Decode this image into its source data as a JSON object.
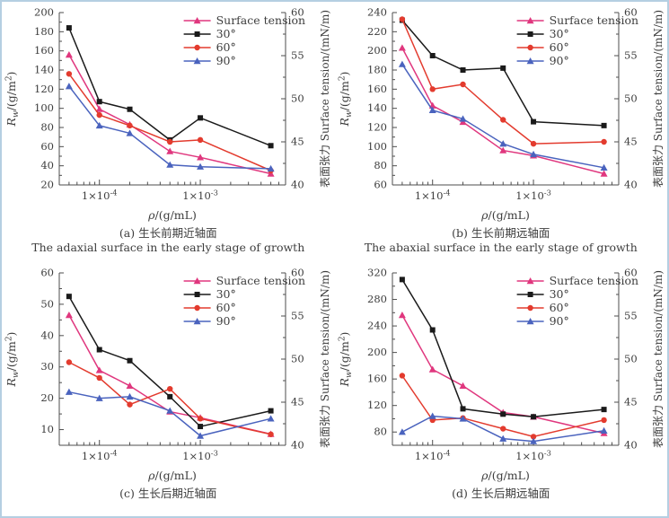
{
  "page": {
    "background": "#ffffff",
    "border_color": "#b5cfe2"
  },
  "colors": {
    "surface_tension": "#e0377e",
    "deg30": "#1a1a1a",
    "deg60": "#e33b2e",
    "deg90": "#4a63be",
    "axis": "#4d4d4d",
    "text": "#3d3d3d"
  },
  "legend": {
    "items": [
      {
        "label": "Surface tension",
        "color_key": "surface_tension",
        "marker": "triangle"
      },
      {
        "label": "30°",
        "color_key": "deg30",
        "marker": "square"
      },
      {
        "label": "60°",
        "color_key": "deg60",
        "marker": "circle"
      },
      {
        "label": "90°",
        "color_key": "deg90",
        "marker": "triangle"
      }
    ]
  },
  "axis_text": {
    "xlabel_parts": [
      {
        "t": "ρ",
        "i": true
      },
      {
        "t": "/(g/mL)"
      }
    ],
    "ylabel_left_parts": [
      {
        "t": "R",
        "i": true
      },
      {
        "t": "w",
        "sub": true,
        "i": true
      },
      {
        "t": "/(g/m"
      },
      {
        "t": "2",
        "sup": true
      },
      {
        "t": ")"
      }
    ],
    "ylabel_right": "表面张力 Surface tension/(mN/m)",
    "x_major_tick_label_parts": [
      [
        {
          "t": "1×10"
        },
        {
          "t": "-4",
          "sup": true
        }
      ],
      [
        {
          "t": "1×10"
        },
        {
          "t": "-3",
          "sup": true
        }
      ]
    ]
  },
  "chart_data": [
    {
      "id": "a",
      "type": "line",
      "caption_zh": "(a) 生长前期近轴面",
      "caption_en": "The adaxial surface in the early stage of growth",
      "x_scale": "log",
      "x_range": [
        4e-05,
        0.007
      ],
      "x_values": [
        5e-05,
        0.0001,
        0.0002,
        0.0005,
        0.001,
        0.005
      ],
      "x_major_ticks": [
        0.0001,
        0.001
      ],
      "y_left": {
        "min": 20,
        "max": 200,
        "tick_start": 20,
        "tick_step": 20,
        "unit": "g/m²"
      },
      "y_right": {
        "min": 40,
        "max": 60,
        "tick_start": 40,
        "tick_step": 5,
        "unit": "mN/m"
      },
      "series": [
        {
          "name": "Surface tension",
          "axis": "right",
          "marker": "triangle",
          "color_key": "surface_tension",
          "values": [
            55.1,
            48.8,
            47.0,
            43.9,
            43.2,
            41.3
          ]
        },
        {
          "name": "30°",
          "axis": "left",
          "marker": "square",
          "color_key": "deg30",
          "values": [
            184,
            107,
            99,
            67,
            90,
            61
          ]
        },
        {
          "name": "60°",
          "axis": "left",
          "marker": "circle",
          "color_key": "deg60",
          "values": [
            136,
            93,
            82,
            65,
            67,
            35
          ]
        },
        {
          "name": "90°",
          "axis": "left",
          "marker": "triangle",
          "color_key": "deg90",
          "values": [
            123,
            82,
            74,
            41,
            39,
            37
          ]
        }
      ]
    },
    {
      "id": "b",
      "type": "line",
      "caption_zh": "(b) 生长前期远轴面",
      "caption_en": "The abaxial surface in the early stage of growth",
      "x_scale": "log",
      "x_range": [
        4e-05,
        0.007
      ],
      "x_values": [
        5e-05,
        0.0001,
        0.0002,
        0.0005,
        0.001,
        0.005
      ],
      "x_major_ticks": [
        0.0001,
        0.001
      ],
      "y_left": {
        "min": 60,
        "max": 240,
        "tick_start": 60,
        "tick_step": 20,
        "unit": "g/m²"
      },
      "y_right": {
        "min": 40,
        "max": 60,
        "tick_start": 40,
        "tick_step": 5,
        "unit": "mN/m"
      },
      "series": [
        {
          "name": "Surface tension",
          "axis": "right",
          "marker": "triangle",
          "color_key": "surface_tension",
          "values": [
            55.9,
            49.2,
            47.3,
            44.0,
            43.4,
            41.3
          ]
        },
        {
          "name": "30°",
          "axis": "left",
          "marker": "square",
          "color_key": "deg30",
          "values": [
            232,
            195,
            180,
            182,
            126,
            122
          ]
        },
        {
          "name": "60°",
          "axis": "left",
          "marker": "circle",
          "color_key": "deg60",
          "values": [
            233,
            160,
            165,
            128,
            103,
            105
          ]
        },
        {
          "name": "90°",
          "axis": "left",
          "marker": "triangle",
          "color_key": "deg90",
          "values": [
            186,
            138,
            129,
            103,
            92,
            78
          ]
        }
      ]
    },
    {
      "id": "c",
      "type": "line",
      "caption_zh": "(c) 生长后期近轴面",
      "x_scale": "log",
      "x_range": [
        4e-05,
        0.007
      ],
      "x_values": [
        5e-05,
        0.0001,
        0.0002,
        0.0005,
        0.001,
        0.005
      ],
      "x_major_ticks": [
        0.0001,
        0.001
      ],
      "y_left": {
        "min": 5,
        "max": 60,
        "tick_start": 10,
        "tick_step": 10,
        "unit": "g/m²"
      },
      "y_right": {
        "min": 40,
        "max": 60,
        "tick_start": 40,
        "tick_step": 5,
        "unit": "mN/m"
      },
      "series": [
        {
          "name": "Surface tension",
          "axis": "right",
          "marker": "triangle",
          "color_key": "surface_tension",
          "values": [
            55.1,
            48.7,
            46.9,
            43.9,
            43.2,
            41.3
          ]
        },
        {
          "name": "30°",
          "axis": "left",
          "marker": "square",
          "color_key": "deg30",
          "values": [
            52.5,
            35.5,
            32,
            20.5,
            11,
            16
          ]
        },
        {
          "name": "60°",
          "axis": "left",
          "marker": "circle",
          "color_key": "deg60",
          "values": [
            31.5,
            26.5,
            18,
            23,
            13.5,
            8.5
          ]
        },
        {
          "name": "90°",
          "axis": "left",
          "marker": "triangle",
          "color_key": "deg90",
          "values": [
            22,
            20,
            20.5,
            16,
            8,
            13.5
          ]
        }
      ]
    },
    {
      "id": "d",
      "type": "line",
      "caption_zh": "(d) 生长后期远轴面",
      "x_scale": "log",
      "x_range": [
        4e-05,
        0.007
      ],
      "x_values": [
        5e-05,
        0.0001,
        0.0002,
        0.0005,
        0.001,
        0.005
      ],
      "x_major_ticks": [
        0.0001,
        0.001
      ],
      "y_left": {
        "min": 60,
        "max": 320,
        "tick_start": 80,
        "tick_step": 40,
        "unit": "g/m²"
      },
      "y_right": {
        "min": 40,
        "max": 60,
        "tick_start": 40,
        "tick_step": 5,
        "unit": "mN/m"
      },
      "series": [
        {
          "name": "Surface tension",
          "axis": "right",
          "marker": "triangle",
          "color_key": "surface_tension",
          "values": [
            55.1,
            48.8,
            46.9,
            43.8,
            43.3,
            41.4
          ]
        },
        {
          "name": "30°",
          "axis": "left",
          "marker": "square",
          "color_key": "deg30",
          "values": [
            310,
            234,
            115,
            107,
            103,
            114
          ]
        },
        {
          "name": "60°",
          "axis": "left",
          "marker": "circle",
          "color_key": "deg60",
          "values": [
            165,
            98,
            101,
            85,
            73,
            98
          ]
        },
        {
          "name": "90°",
          "axis": "left",
          "marker": "triangle",
          "color_key": "deg90",
          "values": [
            80,
            104,
            100,
            70,
            66,
            82
          ]
        }
      ]
    }
  ]
}
